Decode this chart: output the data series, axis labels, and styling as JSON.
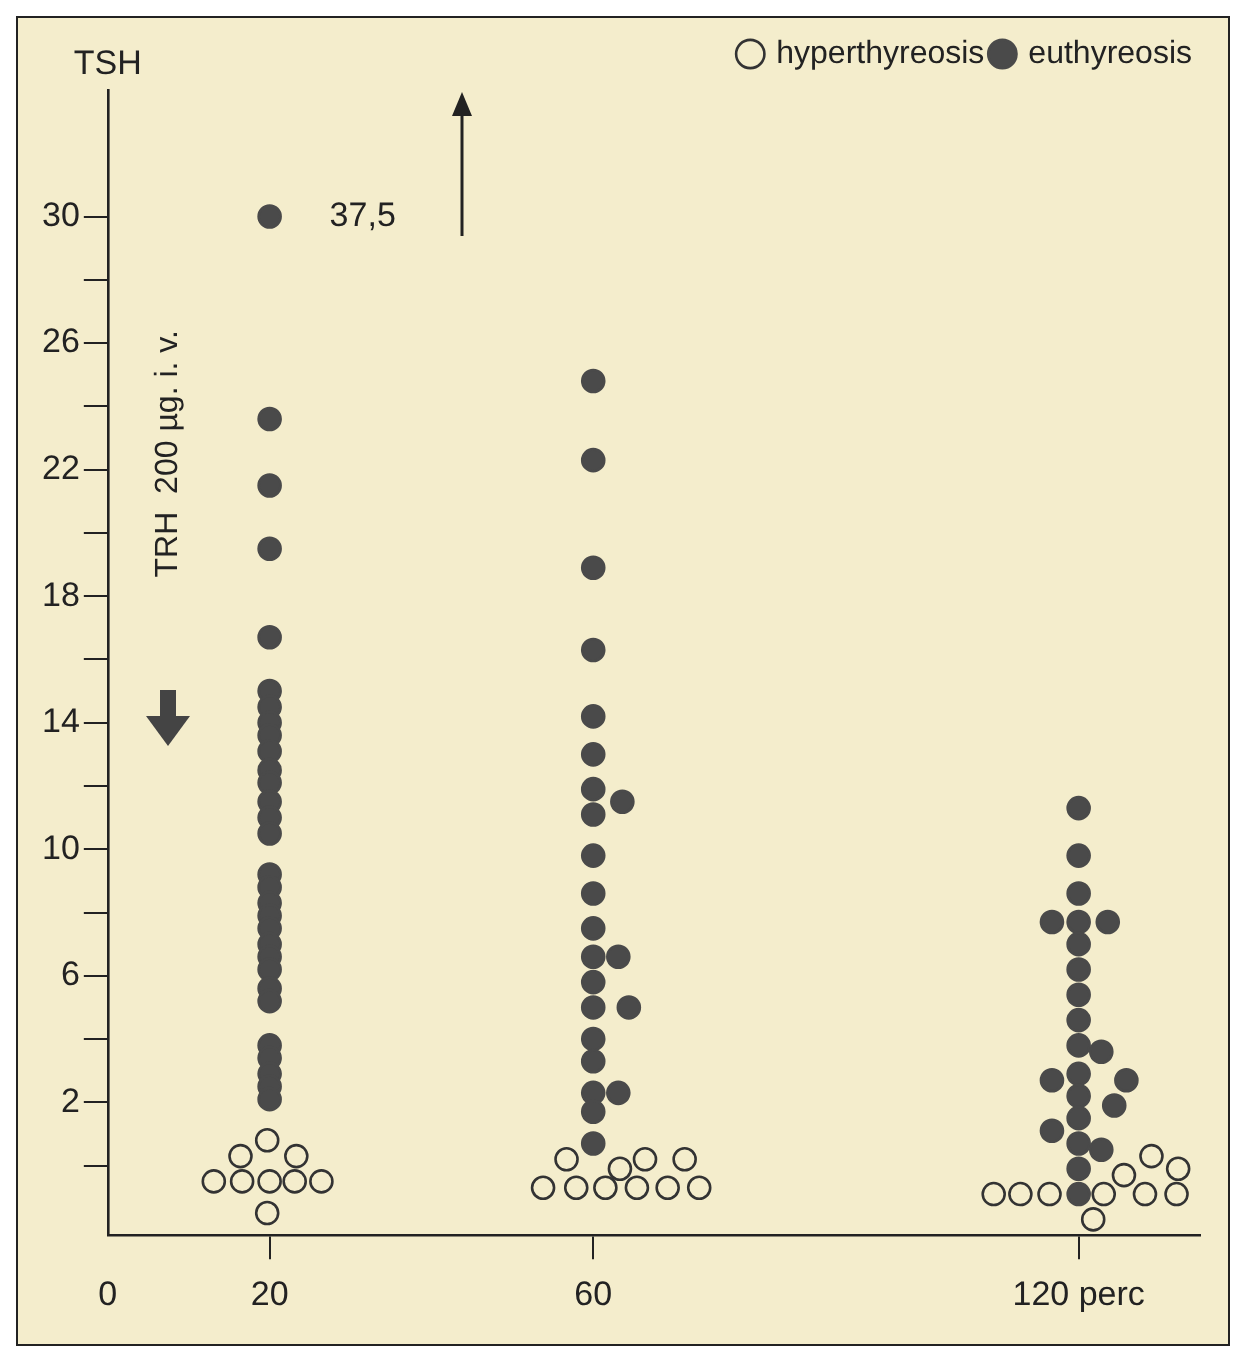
{
  "chart_data": {
    "type": "scatter",
    "ylabel": "TSH",
    "xlim": [
      0,
      135
    ],
    "xticks": [
      0,
      20,
      60,
      {
        "value": 120,
        "label": "120 perc"
      }
    ],
    "ylim": [
      -2.2,
      34
    ],
    "yticks": [
      {
        "value": 0,
        "label": null
      },
      2,
      {
        "value": 4,
        "label": null
      },
      6,
      {
        "value": 8,
        "label": null
      },
      10,
      {
        "value": 12,
        "label": null
      },
      14,
      {
        "value": 16,
        "label": null
      },
      18,
      {
        "value": 20,
        "label": null
      },
      22,
      {
        "value": 24,
        "label": null
      },
      26,
      {
        "value": 28,
        "label": null
      },
      30
    ],
    "grid": false,
    "legend": "top right",
    "marker": "circle",
    "annotations": [
      {
        "text": "37,5",
        "x": 20,
        "y": 30
      },
      "TRH  200 µg. i. v."
    ],
    "series": [
      {
        "name": "hyperthyreosis",
        "color": "#333333",
        "x": [
          19.7,
          16.4,
          23.3,
          13.1,
          16.6,
          20,
          23.1,
          26.4,
          19.7,
          56.7,
          66.4,
          71.3,
          63.3,
          53.8,
          57.9,
          61.5,
          65.4,
          69.2,
          73.1,
          109.5,
          112.8,
          116.4,
          123.1,
          128.2,
          132.1,
          125.6,
          129,
          132.3,
          121.8
        ],
        "values": [
          0.8,
          0.3,
          0.3,
          -0.5,
          -0.5,
          -0.5,
          -0.5,
          -0.5,
          -1.5,
          0.2,
          0.2,
          0.2,
          -0.1,
          -0.7,
          -0.7,
          -0.7,
          -0.7,
          -0.7,
          -0.7,
          -0.9,
          -0.9,
          -0.9,
          -0.9,
          -0.9,
          -0.9,
          -0.3,
          0.3,
          -0.1,
          -1.7
        ]
      },
      {
        "name": "euthyreosis",
        "color": "#4a4a4a",
        "x": [
          20,
          20,
          20,
          20,
          20,
          20,
          20,
          20,
          20,
          20,
          20,
          20,
          20,
          20,
          20,
          20,
          20,
          20,
          20,
          20,
          20,
          20,
          20,
          20,
          20,
          20,
          20,
          20,
          20,
          20,
          60,
          60,
          60,
          60,
          60,
          60,
          60,
          60,
          60,
          60,
          60,
          60,
          60,
          60,
          60,
          60,
          60,
          60,
          60,
          63.6,
          63.1,
          64.4,
          63.1,
          120,
          120,
          120,
          120,
          120,
          120,
          120,
          120,
          120,
          120,
          120,
          120,
          120,
          120,
          120,
          116.7,
          123.6,
          122.8,
          116.7,
          125.9,
          124.4,
          116.7,
          122.8
        ],
        "values": [
          30,
          23.6,
          21.5,
          19.5,
          16.7,
          15.0,
          14.5,
          14.0,
          13.6,
          13.1,
          12.5,
          12.1,
          11.5,
          11.0,
          10.5,
          9.2,
          8.8,
          8.3,
          7.9,
          7.5,
          7.0,
          6.6,
          6.2,
          5.6,
          5.2,
          3.8,
          3.4,
          2.9,
          2.5,
          2.1,
          24.8,
          22.3,
          18.9,
          16.3,
          14.2,
          13.0,
          11.9,
          11.1,
          9.8,
          8.6,
          7.5,
          6.6,
          5.8,
          5.0,
          4.0,
          3.3,
          2.3,
          1.7,
          0.7,
          11.5,
          6.6,
          5.0,
          2.3,
          11.3,
          9.8,
          8.6,
          7.7,
          7.0,
          6.2,
          5.4,
          4.6,
          3.8,
          2.9,
          2.2,
          1.5,
          0.7,
          -0.1,
          -0.9,
          7.7,
          7.7,
          3.6,
          2.7,
          2.7,
          1.9,
          1.1,
          0.5
        ]
      }
    ]
  }
}
